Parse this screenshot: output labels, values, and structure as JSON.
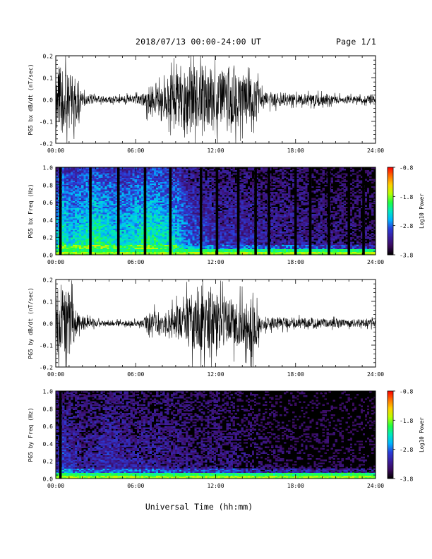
{
  "header": {
    "title": "2018/07/13  00:00-24:00 UT",
    "page": "Page 1/1"
  },
  "colors": {
    "trace": "#000000",
    "data_gap": "#000000",
    "colormap": [
      "#000000",
      "#3a0a5a",
      "#3a1e9c",
      "#2a3cd8",
      "#00b4ff",
      "#00e8c0",
      "#20ff40",
      "#b8ff00",
      "#ffd000",
      "#ff7000",
      "#ff0000"
    ]
  },
  "chart_data": [
    {
      "type": "line",
      "ylabel": "PG5 bx dB/dt (nT/sec)",
      "ylim": [
        -0.2,
        0.2
      ],
      "yticks": [
        "-0.2",
        "-0.1",
        "0.0",
        "0.1",
        "0.2"
      ],
      "xlim": [
        0,
        24
      ],
      "xticks": [
        "00:00",
        "06:00",
        "12:00",
        "18:00",
        "24:00"
      ],
      "x_unit": "hours UT",
      "envelope": {
        "x": [
          0,
          0.3,
          1.0,
          1.6,
          2.0,
          3.0,
          4.5,
          6.5,
          7.0,
          8.0,
          9.0,
          10.5,
          11.5,
          12.5,
          13.5,
          14.5,
          15.0,
          15.5,
          17.0,
          18.0,
          19.5,
          21.0,
          23.0,
          24.0
        ],
        "amplitude": [
          0.2,
          0.2,
          0.2,
          0.12,
          0.04,
          0.02,
          0.02,
          0.03,
          0.1,
          0.08,
          0.17,
          0.2,
          0.2,
          0.2,
          0.18,
          0.12,
          0.13,
          0.05,
          0.04,
          0.03,
          0.035,
          0.025,
          0.02,
          0.035
        ]
      },
      "data_gaps_hours": [
        12.0,
        16.0,
        18.0
      ]
    },
    {
      "type": "heatmap",
      "ylabel": "PG5 bx Freq (Hz)",
      "ylim": [
        0.0,
        1.0
      ],
      "yticks": [
        "0.0",
        "0.2",
        "0.4",
        "0.6",
        "0.8",
        "1.0"
      ],
      "xlim": [
        0,
        24
      ],
      "xticks": [
        "00:00",
        "06:00",
        "12:00",
        "18:00",
        "24:00"
      ],
      "colorbar": {
        "label": "Log10 Power",
        "range": [
          -3.8,
          -0.8
        ],
        "ticks": [
          "-0.8",
          "-1.8",
          "-2.8",
          "-3.8"
        ]
      },
      "intensity_profile": {
        "x": [
          0,
          0.5,
          1.0,
          2.0,
          3.0,
          4.5,
          5.5,
          7.0,
          8.0,
          9.0,
          10.0,
          12.0,
          14.0,
          16.0,
          18.0,
          21.0,
          24.0
        ],
        "level": [
          0.45,
          0.6,
          0.5,
          0.55,
          0.6,
          0.5,
          0.5,
          0.6,
          0.55,
          0.5,
          0.35,
          0.25,
          0.25,
          0.2,
          0.2,
          0.15,
          0.12
        ]
      },
      "data_gaps_hours": [
        0.35,
        2.6,
        4.7,
        6.7,
        8.6,
        10.9,
        12.1,
        13.7,
        15.0,
        16.0,
        18.0,
        19.1,
        20.5,
        22.0,
        23.1
      ]
    },
    {
      "type": "line",
      "ylabel": "PG5 by dB/dt (nT/sec)",
      "ylim": [
        -0.2,
        0.2
      ],
      "yticks": [
        "-0.2",
        "-0.1",
        "0.0",
        "0.1",
        "0.2"
      ],
      "xlim": [
        0,
        24
      ],
      "xticks": [
        "00:00",
        "06:00",
        "12:00",
        "18:00",
        "24:00"
      ],
      "x_unit": "hours UT",
      "envelope": {
        "x": [
          0,
          0.5,
          1.0,
          1.5,
          2.0,
          3.0,
          5.0,
          6.5,
          7.0,
          8.0,
          9.0,
          10.0,
          11.0,
          12.0,
          13.0,
          14.0,
          15.0,
          15.5,
          17.0,
          19.0,
          21.0,
          23.0,
          24.0
        ],
        "amplitude": [
          0.2,
          0.2,
          0.2,
          0.1,
          0.04,
          0.02,
          0.015,
          0.02,
          0.08,
          0.06,
          0.1,
          0.17,
          0.2,
          0.17,
          0.15,
          0.14,
          0.18,
          0.04,
          0.035,
          0.03,
          0.025,
          0.02,
          0.025
        ]
      },
      "data_gaps_hours": []
    },
    {
      "type": "heatmap",
      "ylabel": "PG5 by Freq (Hz)",
      "ylim": [
        0.0,
        1.0
      ],
      "yticks": [
        "0.0",
        "0.2",
        "0.4",
        "0.6",
        "0.8",
        "1.0"
      ],
      "xlim": [
        0,
        24
      ],
      "xticks": [
        "00:00",
        "06:00",
        "12:00",
        "18:00",
        "24:00"
      ],
      "colorbar": {
        "label": "Log10 Power",
        "range": [
          -3.8,
          -0.8
        ],
        "ticks": [
          "-0.8",
          "-1.8",
          "-2.8",
          "-3.8"
        ]
      },
      "intensity_profile": {
        "x": [
          0,
          0.5,
          1.0,
          2.0,
          4.0,
          6.0,
          8.0,
          10.0,
          12.0,
          14.0,
          16.0,
          18.0,
          21.0,
          24.0
        ],
        "level": [
          0.2,
          0.3,
          0.25,
          0.2,
          0.25,
          0.2,
          0.2,
          0.15,
          0.15,
          0.12,
          0.08,
          0.06,
          0.05,
          0.04
        ]
      },
      "data_gaps_hours": [
        0.35
      ]
    }
  ],
  "footer": {
    "xlabel": "Universal Time (hh:mm)"
  }
}
